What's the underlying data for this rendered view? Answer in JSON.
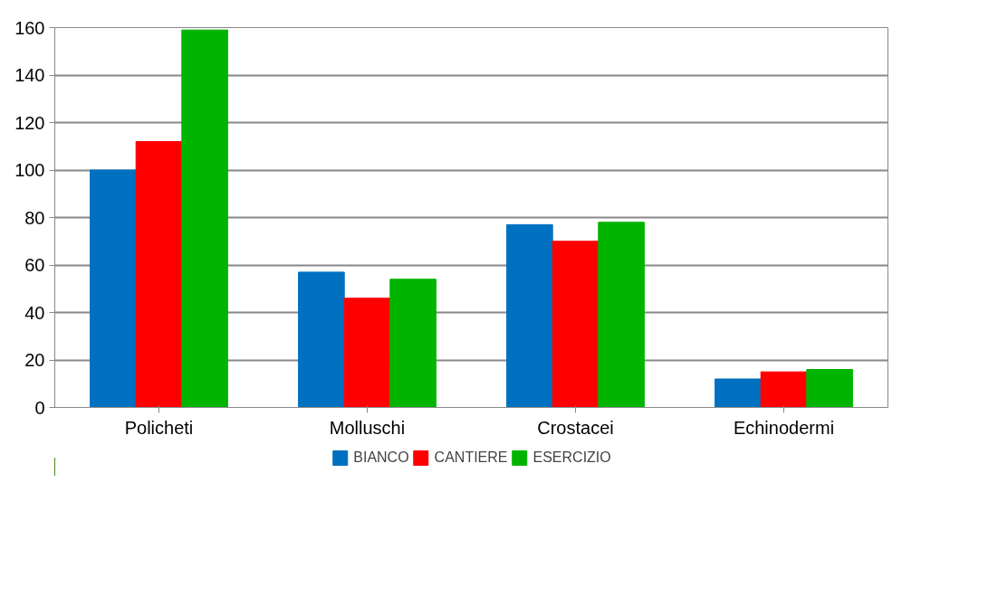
{
  "chart_data": {
    "type": "bar",
    "categories": [
      "Policheti",
      "Molluschi",
      "Crostacei",
      "Echinodermi"
    ],
    "series": [
      {
        "name": "BIANCO",
        "color": "#0070c0",
        "values": [
          100,
          57,
          77,
          12
        ]
      },
      {
        "name": "CANTIERE",
        "color": "#ff0000",
        "values": [
          112,
          46,
          70,
          15
        ]
      },
      {
        "name": "ESERCIZIO",
        "color": "#00b400",
        "values": [
          159,
          54,
          78,
          16
        ]
      }
    ],
    "ylim": [
      0,
      160
    ],
    "yticks": [
      0,
      20,
      40,
      60,
      80,
      100,
      120,
      140,
      160
    ],
    "grid": "y",
    "legend": "bottom"
  }
}
